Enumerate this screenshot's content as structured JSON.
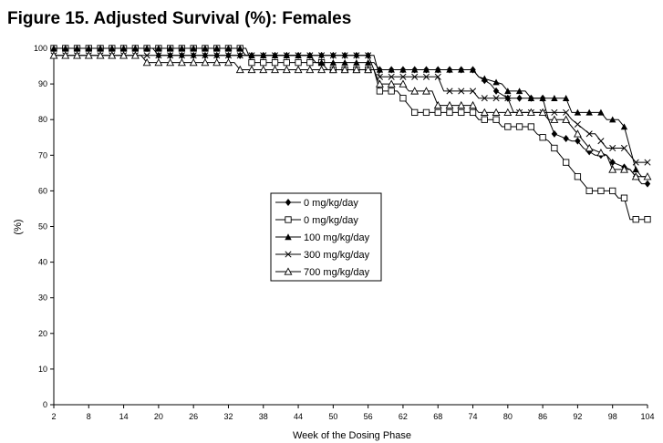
{
  "figure_title": "Figure 15. Adjusted Survival (%): Females",
  "chart_data": {
    "type": "line",
    "title": "Figure 15. Adjusted Survival (%): Females",
    "xlabel": "Week of the Dosing Phase",
    "ylabel": "(%)",
    "xlim": [
      2,
      104
    ],
    "ylim": [
      0,
      100
    ],
    "xticks": [
      2,
      8,
      14,
      20,
      26,
      32,
      38,
      44,
      50,
      56,
      62,
      68,
      74,
      80,
      86,
      92,
      98,
      104
    ],
    "yticks": [
      0,
      10,
      20,
      30,
      40,
      50,
      60,
      70,
      80,
      90,
      100
    ],
    "grid": false,
    "legend_position": "center",
    "step_plot": true,
    "series": [
      {
        "name": "0 mg/kg/day",
        "marker": "diamond-filled",
        "x": [
          2,
          19,
          20,
          56,
          57,
          74,
          75,
          77,
          78,
          80,
          86,
          87,
          88,
          91,
          92,
          93,
          95,
          97,
          98,
          101,
          102,
          103,
          104
        ],
        "y": [
          100,
          100,
          98,
          98,
          94,
          94,
          92,
          90,
          88,
          86,
          86,
          80,
          76,
          74,
          74,
          72,
          70,
          70,
          68,
          66,
          64,
          62,
          62
        ]
      },
      {
        "name": "0 mg/kg/day",
        "marker": "square-open",
        "x": [
          2,
          35,
          36,
          48,
          49,
          57,
          58,
          61,
          62,
          63,
          64,
          74,
          75,
          78,
          79,
          84,
          85,
          87,
          88,
          89,
          90,
          91,
          92,
          93,
          94,
          98,
          99,
          100,
          101,
          104
        ],
        "y": [
          100,
          100,
          96,
          96,
          94,
          94,
          88,
          88,
          86,
          84,
          82,
          82,
          80,
          80,
          78,
          78,
          76,
          74,
          72,
          70,
          68,
          66,
          64,
          62,
          60,
          60,
          58,
          58,
          52,
          52
        ]
      },
      {
        "name": "100 mg/kg/day",
        "marker": "triangle-filled",
        "x": [
          2,
          34,
          35,
          46,
          47,
          57,
          58,
          74,
          75,
          79,
          80,
          83,
          84,
          90,
          91,
          96,
          97,
          99,
          100,
          102,
          103,
          104
        ],
        "y": [
          100,
          100,
          98,
          98,
          96,
          96,
          94,
          94,
          92,
          90,
          88,
          88,
          86,
          86,
          82,
          82,
          80,
          80,
          78,
          66,
          64,
          64
        ]
      },
      {
        "name": "300 mg/kg/day",
        "marker": "x",
        "x": [
          2,
          24,
          25,
          57,
          58,
          68,
          69,
          74,
          75,
          80,
          81,
          83,
          84,
          90,
          91,
          94,
          95,
          96,
          97,
          100,
          101,
          102,
          104
        ],
        "y": [
          98,
          98,
          98,
          98,
          92,
          92,
          88,
          88,
          86,
          86,
          82,
          82,
          82,
          82,
          80,
          76,
          76,
          74,
          72,
          72,
          70,
          68,
          68
        ]
      },
      {
        "name": "700 mg/kg/day",
        "marker": "triangle-open",
        "x": [
          2,
          17,
          18,
          33,
          34,
          57,
          58,
          62,
          63,
          67,
          68,
          74,
          75,
          86,
          87,
          90,
          91,
          93,
          94,
          97,
          98,
          101,
          102,
          104
        ],
        "y": [
          98,
          98,
          96,
          96,
          94,
          94,
          90,
          90,
          88,
          88,
          84,
          84,
          82,
          82,
          80,
          80,
          78,
          74,
          72,
          70,
          66,
          66,
          64,
          64
        ]
      }
    ]
  }
}
